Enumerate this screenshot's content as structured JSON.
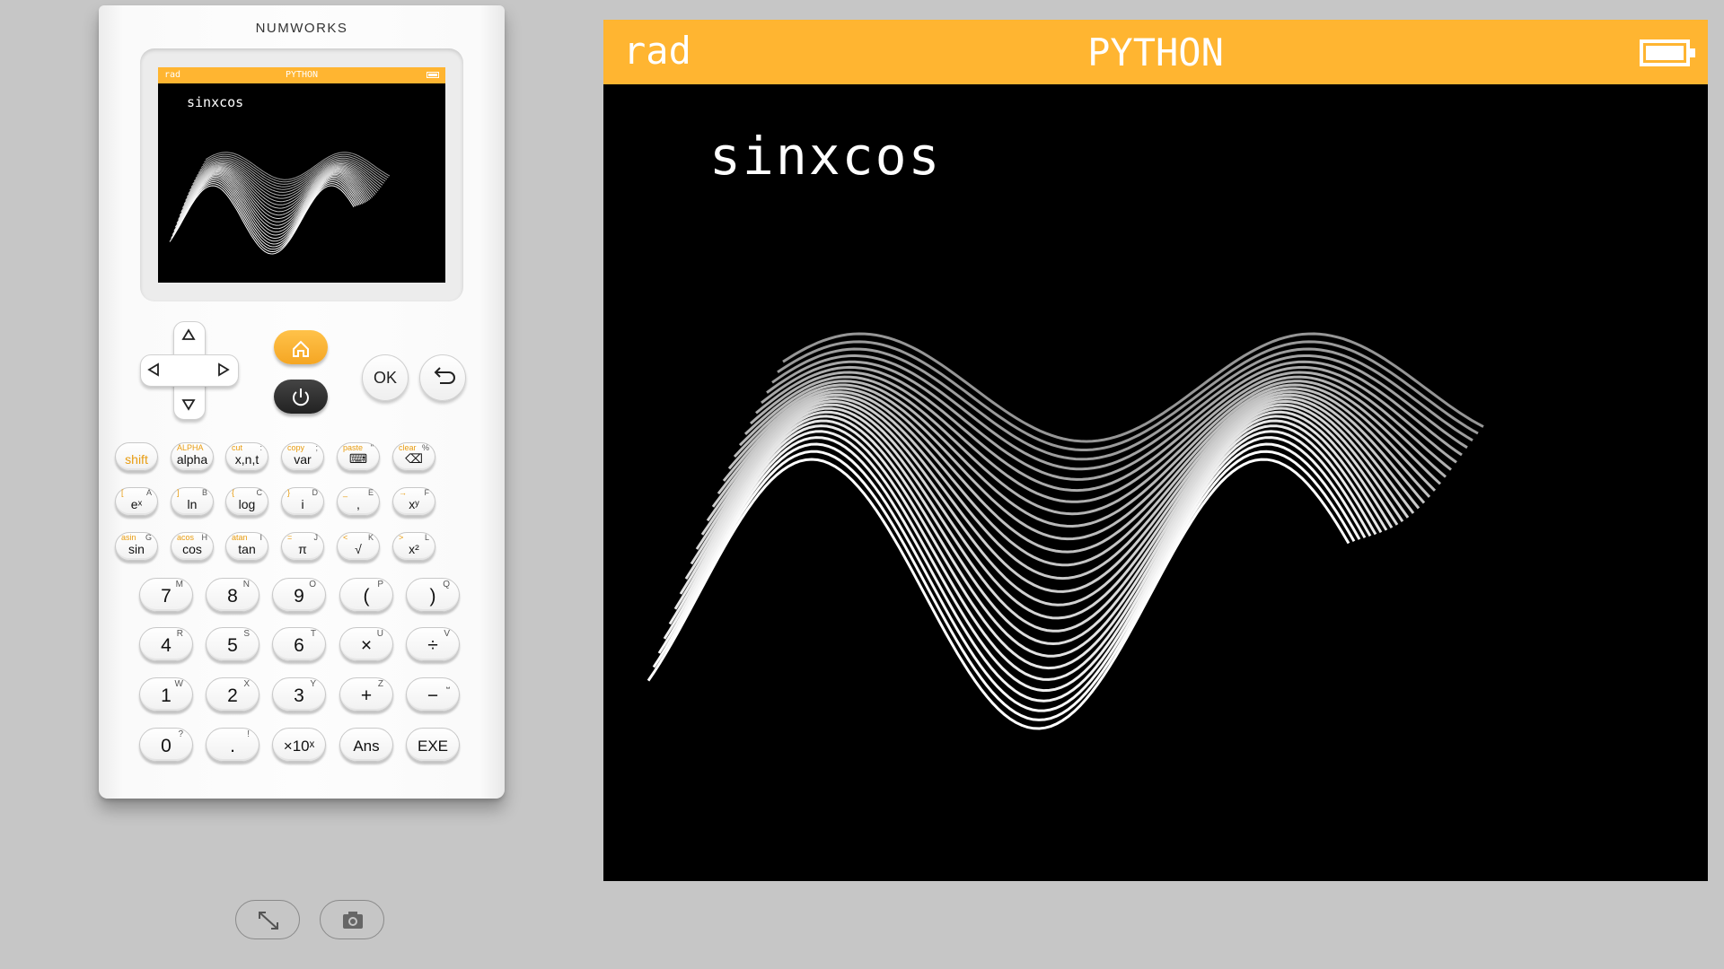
{
  "calculator": {
    "brand": "NUMWORKS",
    "screen": {
      "mode": "rad",
      "app": "PYTHON",
      "program_title": "sinxcos"
    }
  },
  "function_keys": [
    [
      {
        "main": "shift",
        "alt": "",
        "sup": ""
      },
      {
        "main": "alpha",
        "alt": "ALPHA",
        "sup": ""
      },
      {
        "main": "x,n,t",
        "alt": "cut",
        "sup": ":"
      },
      {
        "main": "var",
        "alt": "copy",
        "sup": ";"
      },
      {
        "main": "⌨",
        "alt": "paste",
        "sup": "\""
      },
      {
        "main": "⌫",
        "alt": "clear",
        "sup": "%"
      }
    ],
    [
      {
        "main": "eˣ",
        "alt": "[",
        "sup": "A"
      },
      {
        "main": "ln",
        "alt": "]",
        "sup": "B"
      },
      {
        "main": "log",
        "alt": "{",
        "sup": "C"
      },
      {
        "main": "i",
        "alt": "}",
        "sup": "D"
      },
      {
        "main": ",",
        "alt": "_",
        "sup": "E"
      },
      {
        "main": "xʸ",
        "alt": "→",
        "sup": "F"
      }
    ],
    [
      {
        "main": "sin",
        "alt": "asin",
        "sup": "G"
      },
      {
        "main": "cos",
        "alt": "acos",
        "sup": "H"
      },
      {
        "main": "tan",
        "alt": "atan",
        "sup": "I"
      },
      {
        "main": "π",
        "alt": "=",
        "sup": "J"
      },
      {
        "main": "√",
        "alt": "<",
        "sup": "K"
      },
      {
        "main": "x²",
        "alt": ">",
        "sup": "L"
      }
    ]
  ],
  "number_keys": [
    [
      {
        "main": "7",
        "sup": "M"
      },
      {
        "main": "8",
        "sup": "N"
      },
      {
        "main": "9",
        "sup": "O"
      },
      {
        "main": "(",
        "sup": "P"
      },
      {
        "main": ")",
        "sup": "Q"
      }
    ],
    [
      {
        "main": "4",
        "sup": "R"
      },
      {
        "main": "5",
        "sup": "S"
      },
      {
        "main": "6",
        "sup": "T"
      },
      {
        "main": "×",
        "sup": "U"
      },
      {
        "main": "÷",
        "sup": "V"
      }
    ],
    [
      {
        "main": "1",
        "sup": "W"
      },
      {
        "main": "2",
        "sup": "X"
      },
      {
        "main": "3",
        "sup": "Y"
      },
      {
        "main": "+",
        "sup": "Z"
      },
      {
        "main": "−",
        "sup": "⎵"
      }
    ],
    [
      {
        "main": "0",
        "sup": "?"
      },
      {
        "main": ".",
        "sup": "!"
      },
      {
        "main": "×10ˣ",
        "sup": ""
      },
      {
        "main": "Ans",
        "sup": ""
      },
      {
        "main": "EXE",
        "sup": ""
      }
    ]
  ],
  "nav": {
    "ok_label": "OK",
    "back_icon": "back-arrow-icon",
    "home_icon": "home-icon",
    "power_icon": "power-icon"
  },
  "toolbar": {
    "fullscreen_icon": "fullscreen-icon",
    "screenshot_icon": "camera-icon"
  },
  "display": {
    "mode": "rad",
    "app": "PYTHON",
    "program_title": "sinxcos"
  },
  "colors": {
    "accent": "#ffb531",
    "screen_bg": "#000000",
    "body_bg": "#c6c6c6"
  }
}
